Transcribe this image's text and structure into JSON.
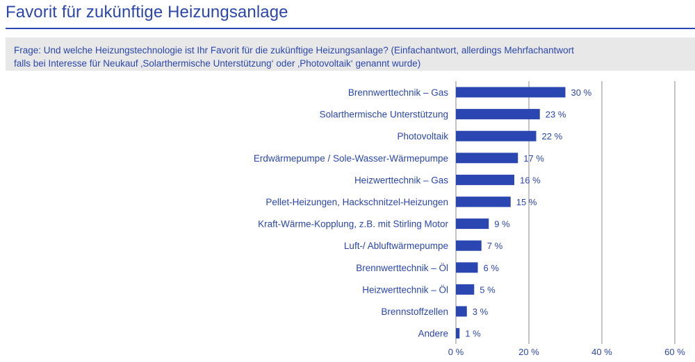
{
  "title": "Favorit für zukünftige Heizungsanlage",
  "question": {
    "line1": "Frage: Und welche Heizungstechnologie ist Ihr Favorit für die zukünftige Heizungsanlage?  (Einfachantwort, allerdings Mehrfachantwort",
    "line2": "falls bei Interesse für Neukauf ‚Solarthermische Unterstützung‘ oder ‚Photovoltaik‘ genannt wurde)"
  },
  "colors": {
    "accent": "#2a46b0",
    "bar": "#2a46b0",
    "grid": "#8a8a8a",
    "band": "#e8e8e8"
  },
  "chart_data": {
    "type": "bar",
    "orientation": "horizontal",
    "categories": [
      "Brennwerttechnik – Gas",
      "Solarthermische Unterstützung",
      "Photovoltaik",
      "Erdwärmepumpe / Sole-Wasser-Wärmepumpe",
      "Heizwerttechnik – Gas",
      "Pellet-Heizungen, Hackschnitzel-Heizungen",
      "Kraft-Wärme-Kopplung, z.B. mit Stirling Motor",
      "Luft-/ Abluftwärmepumpe",
      "Brennwerttechnik – Öl",
      "Heizwerttechnik – Öl",
      "Brennstoffzellen",
      "Andere"
    ],
    "values": [
      30,
      23,
      22,
      17,
      16,
      15,
      9,
      7,
      6,
      5,
      3,
      1
    ],
    "value_labels": [
      "30 %",
      "23 %",
      "22 %",
      "17 %",
      "16 %",
      "15 %",
      "9 %",
      "7 %",
      "6 %",
      "5 %",
      "3 %",
      "1 %"
    ],
    "xlim": [
      0,
      60
    ],
    "ticks": [
      0,
      20,
      40,
      60
    ],
    "tick_labels": [
      "0 %",
      "20 %",
      "40 %",
      "60 %"
    ],
    "grid": true
  }
}
